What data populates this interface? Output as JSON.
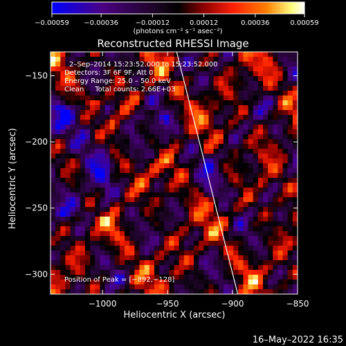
{
  "chart_data": {
    "type": "heatmap",
    "title": "Reconstructed RHESSI Image",
    "xlabel": "Heliocentric X (arcsec)",
    "ylabel": "Heliocentric Y (arcsec)",
    "xlim": [
      -1040,
      -850
    ],
    "ylim": [
      -315,
      -132
    ],
    "x_ticks": [
      -1000,
      -950,
      -900,
      -850
    ],
    "y_ticks": [
      -150,
      -200,
      -250,
      -300
    ],
    "x_tick_labels": [
      "−1000",
      "−950",
      "−900",
      "−850"
    ],
    "y_tick_labels": [
      "−150",
      "−200",
      "−250",
      "−300"
    ],
    "colorbar": {
      "range": [
        -0.00059,
        0.00059
      ],
      "ticks": [
        -0.00059,
        -0.00036,
        -0.00012,
        0.00012,
        0.00036,
        0.00059
      ],
      "tick_labels": [
        "−0.00059",
        "−0.00036",
        "−0.00012",
        "0.00012",
        "0.00036",
        "0.00059"
      ],
      "label": "(photons cm⁻² s⁻¹ asec⁻²)",
      "colors": [
        "#0000ff",
        "#4b0082",
        "#2a0a3a",
        "#000000",
        "#8b0000",
        "#ff2000",
        "#ff8000",
        "#ffff80",
        "#ffffff"
      ]
    },
    "annotations": [
      "2–Sep–2014 15:23:52.000 to 15:23:52.000",
      "Detectors: 3F 6F 9F, Att 0",
      "Energy Range: 25.0 – 50.0 keV",
      "Clean     Total counts: 2.66E+03"
    ],
    "peak_label": "Position of Peak = [−892,−128]",
    "limb_line": [
      [
        -943,
        -132
      ],
      [
        -896,
        -315
      ]
    ],
    "grid": false
  },
  "footer": {
    "timestamp": "16–May–2022 16:35"
  }
}
